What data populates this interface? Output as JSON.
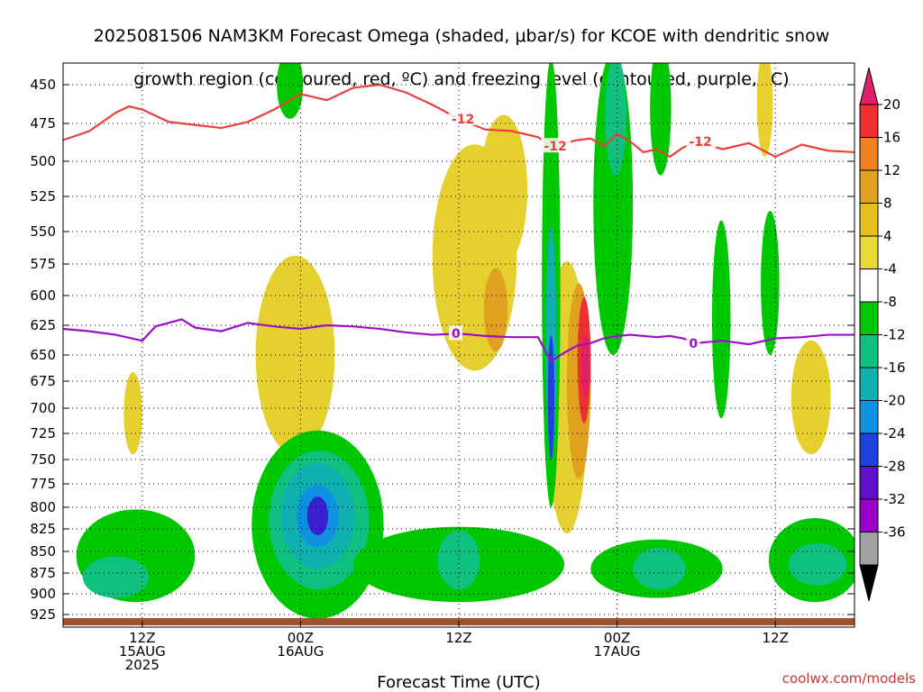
{
  "title_line1": "2025081506 NAM3KM Forecast Omega (shaded, μbar/s) for KCOE with dendritic snow",
  "title_line2": "growth region (contoured, red, ºC) and freezing level (contoured, purple, ºC)",
  "xlabel": "Forecast Time (UTC)",
  "credit": "coolwx.com/models",
  "colors": {
    "dgz_contour": "#e8403a",
    "freezing_contour": "#9a10c8",
    "ground": "#a0522d"
  },
  "chart_data": {
    "type": "heatmap",
    "y_axis": {
      "unit": "mb",
      "ticks": [
        450,
        475,
        500,
        525,
        550,
        575,
        600,
        625,
        650,
        675,
        700,
        725,
        750,
        775,
        800,
        825,
        850,
        875,
        900,
        925
      ],
      "labels": [
        "450",
        "475",
        "500",
        "525",
        "550",
        "575",
        "600",
        "625",
        "650",
        "675",
        "700",
        "725",
        "750",
        "775",
        "800",
        "825",
        "850",
        "875",
        "900",
        "925"
      ]
    },
    "x_axis": {
      "ticks": [
        {
          "line1": "12Z",
          "line2": "15AUG",
          "line3": "2025"
        },
        {
          "line1": "00Z",
          "line2": "16AUG",
          "line3": ""
        },
        {
          "line1": "12Z",
          "line2": "",
          "line3": ""
        },
        {
          "line1": "00Z",
          "line2": "17AUG",
          "line3": ""
        },
        {
          "line1": "12Z",
          "line2": "",
          "line3": ""
        }
      ],
      "forecast_hour_range": [
        0,
        60
      ],
      "tick_hours": [
        6,
        18,
        30,
        42,
        54
      ]
    },
    "colorbar": {
      "labels": [
        "20",
        "16",
        "12",
        "8",
        "4",
        "-4",
        "-8",
        "-12",
        "-16",
        "-20",
        "-24",
        "-28",
        "-32",
        "-36"
      ],
      "colors": [
        "#e0206a",
        "#ee3030",
        "#f08020",
        "#e0a020",
        "#e6c020",
        "#e8d838",
        "#ffffff",
        "#00c800",
        "#10c080",
        "#10b0b0",
        "#1090e0",
        "#2040e0",
        "#6010c8",
        "#9a00c8",
        "#a0a0a0",
        "#000000"
      ]
    },
    "omega_regions": [
      {
        "level": -4,
        "t": 17.2,
        "p": 450,
        "dt": 1.0,
        "dp": 22
      },
      {
        "level": 4,
        "t": 17.6,
        "p": 650,
        "dt": 3.0,
        "dp": 95
      },
      {
        "level": 4,
        "t": 5.3,
        "p": 705,
        "dt": 0.7,
        "dp": 40
      },
      {
        "level": 4,
        "t": 31.2,
        "p": 570,
        "dt": 3.2,
        "dp": 95
      },
      {
        "level": 4,
        "t": 33.4,
        "p": 520,
        "dt": 1.8,
        "dp": 55
      },
      {
        "level": 8,
        "t": 32.8,
        "p": 612,
        "dt": 0.9,
        "dp": 35
      },
      {
        "level": 4,
        "t": 38.2,
        "p": 690,
        "dt": 1.6,
        "dp": 140
      },
      {
        "level": 8,
        "t": 39.1,
        "p": 675,
        "dt": 0.9,
        "dp": 95
      },
      {
        "level": 16,
        "t": 39.5,
        "p": 655,
        "dt": 0.5,
        "dp": 60
      },
      {
        "level": 20,
        "t": 39.6,
        "p": 660,
        "dt": 0.3,
        "dp": 30
      },
      {
        "level": -4,
        "t": 37.0,
        "p": 590,
        "dt": 0.7,
        "dp": 210
      },
      {
        "level": -12,
        "t": 37.0,
        "p": 640,
        "dt": 0.4,
        "dp": 110
      },
      {
        "level": -20,
        "t": 37.0,
        "p": 690,
        "dt": 0.25,
        "dp": 60
      },
      {
        "level": -4,
        "t": 41.7,
        "p": 530,
        "dt": 1.5,
        "dp": 120
      },
      {
        "level": -8,
        "t": 41.9,
        "p": 470,
        "dt": 0.8,
        "dp": 40
      },
      {
        "level": -4,
        "t": 45.3,
        "p": 465,
        "dt": 0.8,
        "dp": 45
      },
      {
        "level": -4,
        "t": 49.9,
        "p": 620,
        "dt": 0.7,
        "dp": 90
      },
      {
        "level": -4,
        "t": 53.6,
        "p": 590,
        "dt": 0.7,
        "dp": 60
      },
      {
        "level": 4,
        "t": 53.2,
        "p": 462,
        "dt": 0.6,
        "dp": 35
      },
      {
        "level": 4,
        "t": 56.7,
        "p": 690,
        "dt": 1.5,
        "dp": 55
      },
      {
        "level": -4,
        "t": 19.3,
        "p": 820,
        "dt": 5.0,
        "dp": 110
      },
      {
        "level": -8,
        "t": 19.4,
        "p": 815,
        "dt": 3.8,
        "dp": 80
      },
      {
        "level": -12,
        "t": 19.3,
        "p": 810,
        "dt": 2.8,
        "dp": 60
      },
      {
        "level": -16,
        "t": 19.3,
        "p": 810,
        "dt": 1.6,
        "dp": 35
      },
      {
        "level": -24,
        "t": 19.3,
        "p": 810,
        "dt": 0.8,
        "dp": 22
      },
      {
        "level": -4,
        "t": 5.5,
        "p": 855,
        "dt": 4.5,
        "dp": 55
      },
      {
        "level": -8,
        "t": 4.0,
        "p": 880,
        "dt": 2.5,
        "dp": 25
      },
      {
        "level": -4,
        "t": 30.0,
        "p": 865,
        "dt": 8.0,
        "dp": 45
      },
      {
        "level": -8,
        "t": 30.0,
        "p": 860,
        "dt": 1.6,
        "dp": 35
      },
      {
        "level": -4,
        "t": 45.0,
        "p": 870,
        "dt": 5.0,
        "dp": 35
      },
      {
        "level": -8,
        "t": 45.2,
        "p": 870,
        "dt": 2.0,
        "dp": 25
      },
      {
        "level": -4,
        "t": 57.0,
        "p": 860,
        "dt": 3.5,
        "dp": 50
      },
      {
        "level": -8,
        "t": 57.2,
        "p": 865,
        "dt": 2.2,
        "dp": 25
      }
    ],
    "dgz_line": {
      "label": "-12",
      "t": [
        0,
        2,
        4,
        5,
        6,
        7,
        8,
        10,
        12,
        14,
        16,
        18,
        20,
        22,
        24,
        26,
        28,
        30,
        32,
        34,
        36,
        37,
        38,
        39,
        40,
        41,
        42,
        43,
        44,
        45,
        46,
        47,
        48,
        50,
        52,
        54,
        56,
        58,
        60
      ],
      "p": [
        486,
        480,
        468,
        464,
        466,
        470,
        474,
        476,
        478,
        474,
        466,
        456,
        460,
        452,
        450,
        455,
        463,
        472,
        479,
        480,
        484,
        490,
        488,
        486,
        485,
        490,
        482,
        487,
        494,
        492,
        497,
        491,
        487,
        492,
        488,
        497,
        489,
        493,
        494
      ]
    },
    "freezing_line": {
      "label": "0",
      "t": [
        0,
        2,
        4,
        6,
        7,
        8,
        9,
        10,
        12,
        14,
        16,
        18,
        20,
        22,
        24,
        26,
        28,
        30,
        32,
        34,
        36,
        37,
        38,
        39,
        40,
        41,
        42,
        43,
        44,
        45,
        46,
        47,
        48,
        50,
        52,
        54,
        56,
        58,
        60
      ],
      "p": [
        628,
        630,
        633,
        638,
        626,
        623,
        620,
        627,
        630,
        623,
        626,
        628,
        625,
        626,
        628,
        631,
        633,
        632,
        634,
        635,
        635,
        656,
        648,
        642,
        640,
        636,
        634,
        633,
        634,
        635,
        634,
        636,
        640,
        638,
        641,
        636,
        635,
        633,
        633
      ]
    }
  }
}
